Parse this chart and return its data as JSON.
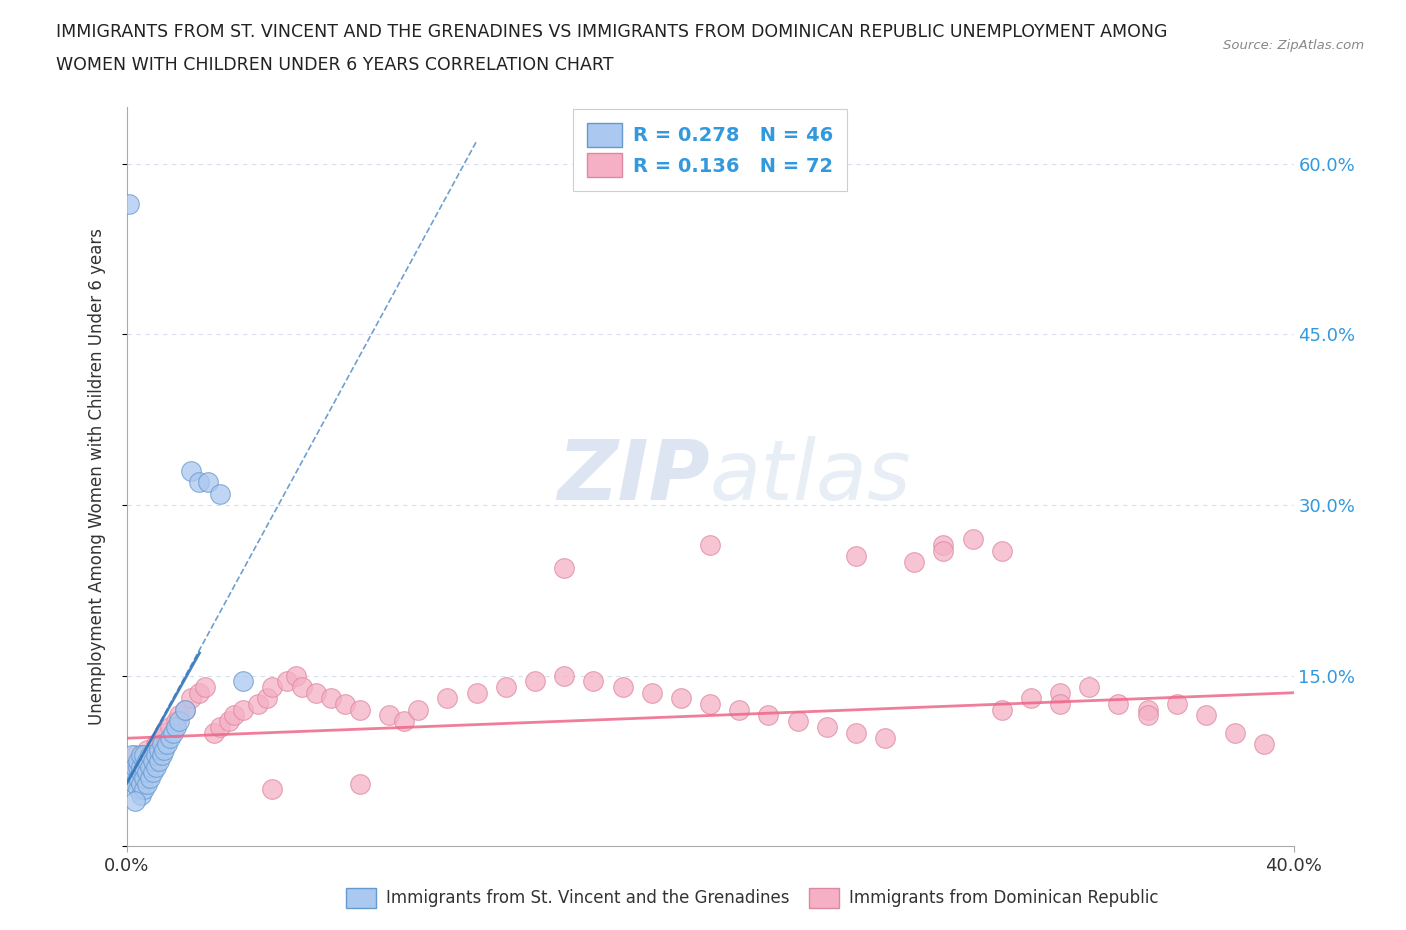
{
  "title_line1": "IMMIGRANTS FROM ST. VINCENT AND THE GRENADINES VS IMMIGRANTS FROM DOMINICAN REPUBLIC UNEMPLOYMENT AMONG",
  "title_line2": "WOMEN WITH CHILDREN UNDER 6 YEARS CORRELATION CHART",
  "source": "Source: ZipAtlas.com",
  "ylabel": "Unemployment Among Women with Children Under 6 years",
  "legend_R1": "0.278",
  "legend_N1": "46",
  "legend_R2": "0.136",
  "legend_N2": "72",
  "series1_color": "#aac8f0",
  "series1_edge": "#6699cc",
  "series2_color": "#f5b0c5",
  "series2_edge": "#dd88a0",
  "trendline1_color": "#3377bb",
  "trendline2_color": "#ee6688",
  "background_color": "#ffffff",
  "grid_color": "#d8ddf0",
  "title_color": "#222222",
  "axis_label_color": "#333333",
  "right_tick_color": "#3399dd",
  "watermark_color": "#c5d5e8",
  "xlim": [
    0.0,
    0.4
  ],
  "ylim": [
    0.0,
    0.65
  ],
  "ytick_values": [
    0.0,
    0.15,
    0.3,
    0.45,
    0.6
  ],
  "right_ytick_values": [
    0.15,
    0.3,
    0.45,
    0.6
  ],
  "right_ytick_labels": [
    "15.0%",
    "30.0%",
    "45.0%",
    "60.0%"
  ],
  "xtick_values": [
    0.0,
    0.4
  ],
  "xtick_labels": [
    "0.0%",
    "40.0%"
  ],
  "bottom_legend_labels": [
    "Immigrants from St. Vincent and the Grenadines",
    "Immigrants from Dominican Republic"
  ],
  "series1_x": [
    0.001,
    0.002,
    0.002,
    0.003,
    0.003,
    0.003,
    0.004,
    0.004,
    0.004,
    0.004,
    0.005,
    0.005,
    0.005,
    0.005,
    0.005,
    0.006,
    0.006,
    0.006,
    0.006,
    0.007,
    0.007,
    0.007,
    0.008,
    0.008,
    0.008,
    0.009,
    0.009,
    0.01,
    0.01,
    0.011,
    0.011,
    0.012,
    0.012,
    0.013,
    0.014,
    0.015,
    0.016,
    0.017,
    0.018,
    0.02,
    0.022,
    0.025,
    0.028,
    0.032,
    0.04,
    0.003
  ],
  "series1_y": [
    0.565,
    0.06,
    0.08,
    0.055,
    0.065,
    0.07,
    0.05,
    0.06,
    0.07,
    0.075,
    0.045,
    0.055,
    0.065,
    0.07,
    0.08,
    0.05,
    0.06,
    0.07,
    0.08,
    0.055,
    0.065,
    0.075,
    0.06,
    0.07,
    0.08,
    0.065,
    0.075,
    0.07,
    0.08,
    0.075,
    0.085,
    0.08,
    0.09,
    0.085,
    0.09,
    0.095,
    0.1,
    0.105,
    0.11,
    0.12,
    0.33,
    0.32,
    0.32,
    0.31,
    0.145,
    0.04
  ],
  "series2_x": [
    0.003,
    0.005,
    0.006,
    0.007,
    0.008,
    0.009,
    0.01,
    0.012,
    0.013,
    0.015,
    0.017,
    0.018,
    0.02,
    0.022,
    0.025,
    0.027,
    0.03,
    0.032,
    0.035,
    0.037,
    0.04,
    0.045,
    0.048,
    0.05,
    0.055,
    0.058,
    0.06,
    0.065,
    0.07,
    0.075,
    0.08,
    0.09,
    0.095,
    0.1,
    0.11,
    0.12,
    0.13,
    0.14,
    0.15,
    0.16,
    0.17,
    0.18,
    0.19,
    0.2,
    0.21,
    0.22,
    0.23,
    0.24,
    0.25,
    0.26,
    0.27,
    0.28,
    0.29,
    0.3,
    0.31,
    0.32,
    0.33,
    0.34,
    0.35,
    0.36,
    0.37,
    0.38,
    0.39,
    0.15,
    0.2,
    0.25,
    0.28,
    0.3,
    0.32,
    0.35,
    0.05,
    0.08
  ],
  "series2_y": [
    0.08,
    0.075,
    0.08,
    0.085,
    0.075,
    0.08,
    0.09,
    0.095,
    0.1,
    0.105,
    0.11,
    0.115,
    0.12,
    0.13,
    0.135,
    0.14,
    0.1,
    0.105,
    0.11,
    0.115,
    0.12,
    0.125,
    0.13,
    0.14,
    0.145,
    0.15,
    0.14,
    0.135,
    0.13,
    0.125,
    0.12,
    0.115,
    0.11,
    0.12,
    0.13,
    0.135,
    0.14,
    0.145,
    0.15,
    0.145,
    0.14,
    0.135,
    0.13,
    0.125,
    0.12,
    0.115,
    0.11,
    0.105,
    0.1,
    0.095,
    0.25,
    0.265,
    0.27,
    0.26,
    0.13,
    0.135,
    0.14,
    0.125,
    0.12,
    0.125,
    0.115,
    0.1,
    0.09,
    0.245,
    0.265,
    0.255,
    0.26,
    0.12,
    0.125,
    0.115,
    0.05,
    0.055
  ],
  "trendline1_x": [
    0.0,
    0.12
  ],
  "trendline1_y": [
    0.055,
    0.62
  ],
  "trendline2_x": [
    0.0,
    0.4
  ],
  "trendline2_y": [
    0.095,
    0.135
  ]
}
